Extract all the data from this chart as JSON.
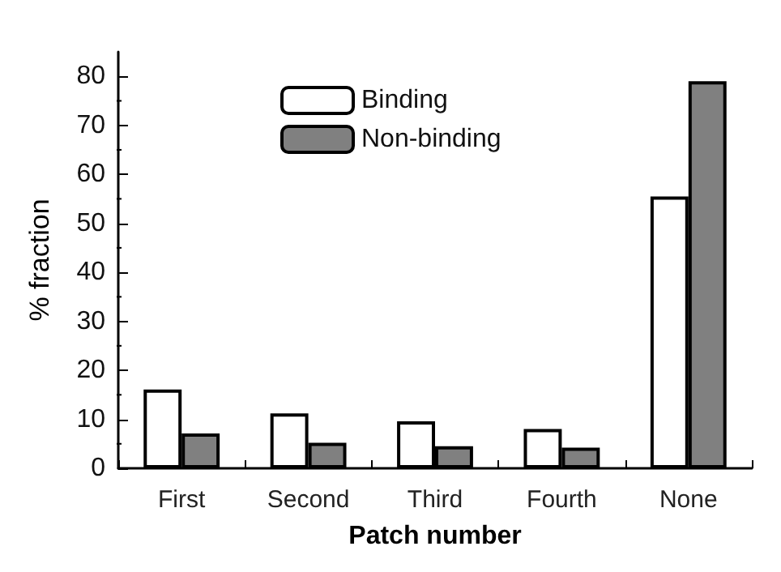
{
  "chart_data": {
    "type": "bar",
    "xlabel": "Patch number",
    "ylabel": "% fraction",
    "categories": [
      "First",
      "Second",
      "Third",
      "Fourth",
      "None"
    ],
    "series": [
      {
        "name": "Binding",
        "color": "#ffffff",
        "values": [
          16.1,
          11.2,
          9.6,
          8.0,
          55.5
        ]
      },
      {
        "name": "Non-binding",
        "color": "#808080",
        "values": [
          7.1,
          5.2,
          4.5,
          4.2,
          79.0
        ]
      }
    ],
    "ylim": [
      0,
      85
    ],
    "yticks": [
      0,
      10,
      20,
      30,
      40,
      50,
      60,
      70,
      80
    ],
    "grid": false,
    "legend": "top"
  }
}
